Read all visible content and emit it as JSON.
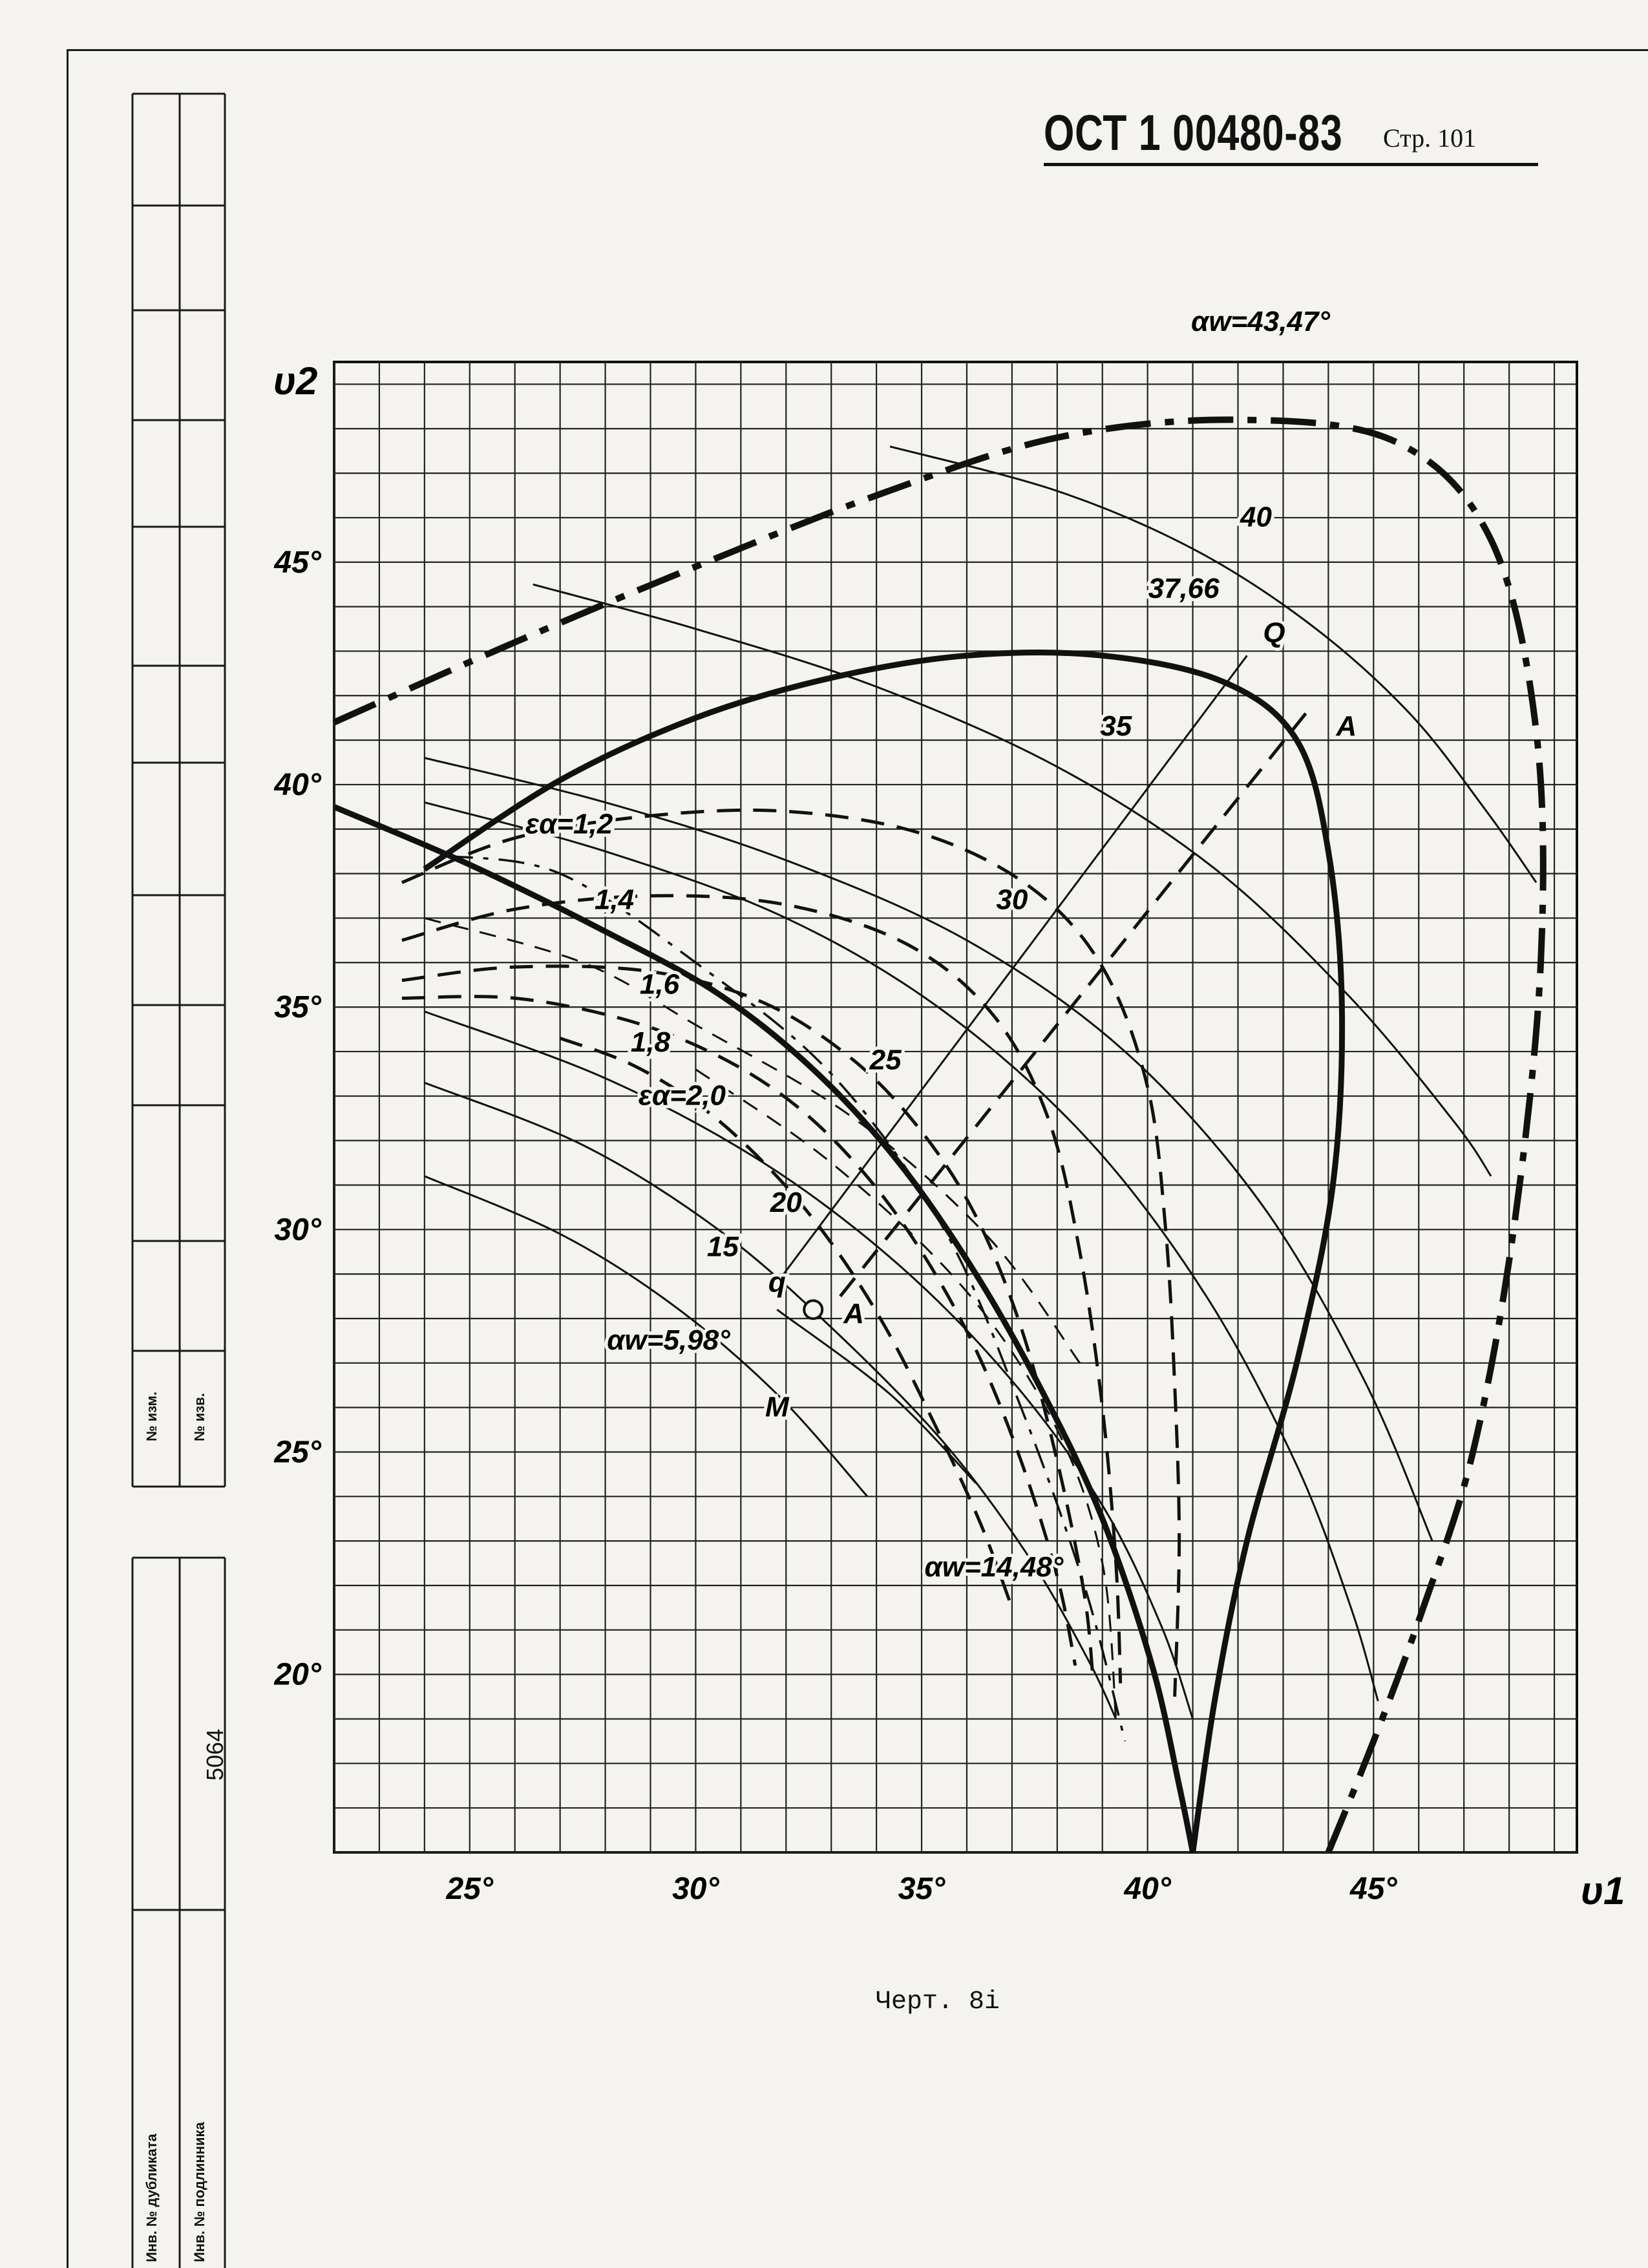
{
  "document": {
    "code": "ОСТ 1 00480-83",
    "page_label": "Стр. 101",
    "caption": "Черт. 8і"
  },
  "stamp": {
    "change_no_1": "№ изм.",
    "change_no_2": "№ изв.",
    "duplicate": "Инв. № дубликата",
    "original": "Инв. № подлинника",
    "number": "5064"
  },
  "chart_data": {
    "type": "line",
    "xlabel": "υ1",
    "ylabel": "υ2",
    "xlim": [
      22,
      49.5
    ],
    "ylim": [
      16,
      49.5
    ],
    "x_ticks": [
      "25°",
      "30°",
      "35°",
      "40°",
      "45°"
    ],
    "x_tick_values": [
      25,
      30,
      35,
      40,
      45
    ],
    "y_ticks": [
      "20°",
      "25°",
      "30°",
      "35°",
      "40°",
      "45°"
    ],
    "y_tick_values": [
      20,
      25,
      30,
      35,
      40,
      45
    ],
    "grid": true,
    "series": [
      {
        "name": "40",
        "style": "thin",
        "points": [
          [
            34.3,
            47.6
          ],
          [
            38,
            46.6
          ],
          [
            41,
            45.3
          ],
          [
            43.6,
            43.6
          ],
          [
            45.8,
            41.6
          ],
          [
            47.5,
            39.4
          ],
          [
            48.6,
            37.8
          ]
        ]
      },
      {
        "name": "37,66",
        "style": "thin",
        "points": [
          [
            26.4,
            44.5
          ],
          [
            30,
            43.5
          ],
          [
            34,
            42.2
          ],
          [
            38,
            40.4
          ],
          [
            41.5,
            38.1
          ],
          [
            44.5,
            35.2
          ],
          [
            46.8,
            32.4
          ],
          [
            47.6,
            31.2
          ]
        ]
      },
      {
        "name": "35",
        "style": "thin",
        "points": [
          [
            24,
            40.6
          ],
          [
            28,
            39.6
          ],
          [
            32,
            38.3
          ],
          [
            36,
            36.5
          ],
          [
            39.5,
            34
          ],
          [
            42.5,
            30.6
          ],
          [
            44.8,
            26.6
          ],
          [
            46.3,
            23
          ]
        ]
      },
      {
        "name": "30",
        "style": "thin",
        "points": [
          [
            24,
            39.6
          ],
          [
            28,
            38.5
          ],
          [
            32,
            37
          ],
          [
            35.5,
            34.9
          ],
          [
            38.7,
            32
          ],
          [
            41.3,
            28.5
          ],
          [
            43.3,
            24.7
          ],
          [
            44.5,
            21.5
          ],
          [
            45.1,
            19.4
          ]
        ]
      },
      {
        "name": "25",
        "style": "thin",
        "points": [
          [
            24,
            34.9
          ],
          [
            28,
            33.4
          ],
          [
            31.5,
            31.5
          ],
          [
            34.5,
            29.2
          ],
          [
            37,
            26.6
          ],
          [
            39,
            23.8
          ],
          [
            40.3,
            21.1
          ],
          [
            41,
            19
          ]
        ]
      },
      {
        "name": "20",
        "style": "thin",
        "points": [
          [
            24,
            33.3
          ],
          [
            27.5,
            31.9
          ],
          [
            30.5,
            30
          ],
          [
            33,
            27.8
          ],
          [
            35.5,
            25.2
          ],
          [
            37.4,
            22.6
          ],
          [
            38.7,
            20.3
          ],
          [
            39.3,
            19
          ]
        ]
      },
      {
        "name": "15",
        "style": "thin",
        "points": [
          [
            24,
            31.2
          ],
          [
            27,
            29.9
          ],
          [
            29.5,
            28.3
          ],
          [
            31.8,
            26.3
          ],
          [
            33.8,
            24
          ]
        ]
      },
      {
        "name": "αw=43,47°",
        "style": "thick-dashdot",
        "points": [
          [
            22,
            41.4
          ],
          [
            26,
            43.2
          ],
          [
            30,
            44.9
          ],
          [
            34,
            46.5
          ],
          [
            38,
            47.8
          ],
          [
            42,
            48.2
          ],
          [
            45.5,
            47.7
          ],
          [
            47.6,
            45.5
          ],
          [
            48.6,
            41.2
          ],
          [
            48.7,
            36
          ],
          [
            48.1,
            30
          ],
          [
            47.2,
            25
          ],
          [
            46.1,
            21.5
          ],
          [
            45,
            18.5
          ],
          [
            44,
            16
          ]
        ]
      },
      {
        "name": "αw=14,48°",
        "style": "thick",
        "points": [
          [
            24,
            38.1
          ],
          [
            27,
            40.1
          ],
          [
            30,
            41.5
          ],
          [
            33,
            42.4
          ],
          [
            36,
            42.9
          ],
          [
            39,
            42.9
          ],
          [
            41.7,
            42.3
          ],
          [
            43.3,
            41
          ],
          [
            44,
            38.5
          ],
          [
            44.3,
            35
          ],
          [
            44.1,
            31
          ],
          [
            43.3,
            27
          ],
          [
            42.2,
            23
          ],
          [
            41.5,
            19.5
          ],
          [
            41,
            16
          ]
        ]
      },
      {
        "name": "αw=5,98°",
        "style": "thick",
        "points": [
          [
            22,
            39.5
          ],
          [
            25,
            38.2
          ],
          [
            28,
            36.7
          ],
          [
            30.5,
            35.3
          ],
          [
            32.6,
            33.6
          ],
          [
            34.5,
            31.5
          ],
          [
            36.2,
            29
          ],
          [
            37.7,
            26.3
          ],
          [
            39,
            23.5
          ],
          [
            40.1,
            20.2
          ],
          [
            40.7,
            17.5
          ],
          [
            41,
            16
          ]
        ]
      },
      {
        "name": "ε=1,2",
        "style": "dashed",
        "points": [
          [
            23.5,
            37.8
          ],
          [
            26,
            38.8
          ],
          [
            29,
            39.3
          ],
          [
            32,
            39.4
          ],
          [
            35,
            38.9
          ],
          [
            37.4,
            37.7
          ],
          [
            39,
            35.9
          ],
          [
            40,
            33.2
          ],
          [
            40.4,
            30
          ],
          [
            40.6,
            26.5
          ],
          [
            40.7,
            23
          ],
          [
            40.6,
            19.5
          ]
        ]
      },
      {
        "name": "ε=1,4",
        "style": "dashed",
        "points": [
          [
            23.5,
            36.5
          ],
          [
            26,
            37.2
          ],
          [
            29,
            37.5
          ],
          [
            32,
            37.3
          ],
          [
            34.7,
            36.4
          ],
          [
            36.6,
            34.8
          ],
          [
            37.8,
            32.5
          ],
          [
            38.5,
            29.5
          ],
          [
            39,
            26
          ],
          [
            39.3,
            22.5
          ],
          [
            39.4,
            19.8
          ]
        ]
      },
      {
        "name": "ε=1,6",
        "style": "dashed",
        "points": [
          [
            23.5,
            35.6
          ],
          [
            26,
            35.9
          ],
          [
            29,
            35.8
          ],
          [
            31.5,
            35.1
          ],
          [
            33.5,
            33.8
          ],
          [
            35,
            32.2
          ],
          [
            36.2,
            30.3
          ],
          [
            37.2,
            27.8
          ],
          [
            38,
            24.8
          ],
          [
            38.6,
            21.8
          ],
          [
            38.8,
            19.8
          ]
        ]
      },
      {
        "name": "ε=1,8",
        "style": "dashed",
        "points": [
          [
            23.5,
            35.2
          ],
          [
            26,
            35.2
          ],
          [
            28.5,
            34.7
          ],
          [
            30.5,
            33.9
          ],
          [
            32.2,
            32.8
          ],
          [
            33.7,
            31.3
          ],
          [
            35,
            29.5
          ],
          [
            36.2,
            27.3
          ],
          [
            37.2,
            24.8
          ],
          [
            38,
            22.2
          ],
          [
            38.4,
            20.2
          ]
        ]
      },
      {
        "name": "ε=2,0",
        "style": "dashed",
        "points": [
          [
            27,
            34.3
          ],
          [
            28.6,
            33.7
          ],
          [
            30.2,
            32.7
          ],
          [
            31.7,
            31.3
          ],
          [
            33,
            29.7
          ],
          [
            34.2,
            27.8
          ],
          [
            35.3,
            25.6
          ],
          [
            36.3,
            23.4
          ],
          [
            37,
            21.5
          ]
        ]
      },
      {
        "name": "Q–q",
        "style": "thin",
        "points": [
          [
            31.8,
            28.8
          ],
          [
            42.2,
            42.9
          ]
        ]
      },
      {
        "name": "A–A",
        "style": "dashed",
        "points": [
          [
            33.2,
            28.5
          ],
          [
            43.5,
            41.6
          ]
        ]
      },
      {
        "name": "M",
        "style": "thin",
        "points": [
          [
            31.8,
            28.2
          ],
          [
            34.3,
            26.3
          ],
          [
            36.2,
            24.3
          ]
        ]
      },
      {
        "name": "aux-dash-1",
        "style": "thin-dashed",
        "points": [
          [
            24,
            37
          ],
          [
            27.5,
            36
          ],
          [
            30,
            34.6
          ],
          [
            33.5,
            32.5
          ],
          [
            36.5,
            29.8
          ],
          [
            38.5,
            27
          ]
        ]
      },
      {
        "name": "aux-dash-2",
        "style": "thin-dashed",
        "points": [
          [
            30,
            33.6
          ],
          [
            33,
            31.5
          ],
          [
            36,
            28.6
          ],
          [
            38,
            25.5
          ],
          [
            39,
            22.5
          ],
          [
            39.3,
            19
          ]
        ]
      },
      {
        "name": "aux-dashdot",
        "style": "thin-dashdot",
        "points": [
          [
            24.5,
            38.4
          ],
          [
            27,
            38
          ],
          [
            30,
            36
          ],
          [
            33,
            33.5
          ],
          [
            35.5,
            30
          ],
          [
            37.2,
            26
          ],
          [
            38.6,
            22
          ],
          [
            39.5,
            18.5
          ]
        ]
      }
    ],
    "points": [
      {
        "name": "M",
        "x": 32.6,
        "y": 28.2
      }
    ],
    "annotations": [
      {
        "text": "αw=43,47°",
        "x": 42.5,
        "y": 50.2
      },
      {
        "text": "40",
        "x": 42.4,
        "y": 45.8
      },
      {
        "text": "37,66",
        "x": 40.8,
        "y": 44.2
      },
      {
        "text": "Q",
        "x": 42.8,
        "y": 43.2
      },
      {
        "text": "35",
        "x": 39.3,
        "y": 41.1
      },
      {
        "text": "A",
        "x": 44.4,
        "y": 41.1
      },
      {
        "text": "εα=1,2",
        "x": 27.2,
        "y": 38.9
      },
      {
        "text": "1,4",
        "x": 28.2,
        "y": 37.2
      },
      {
        "text": "30",
        "x": 37,
        "y": 37.2
      },
      {
        "text": "1,6",
        "x": 29.2,
        "y": 35.3
      },
      {
        "text": "1,8",
        "x": 29,
        "y": 34.0
      },
      {
        "text": "25",
        "x": 34.2,
        "y": 33.6
      },
      {
        "text": "εα=2,0",
        "x": 29.7,
        "y": 32.8
      },
      {
        "text": "20",
        "x": 32,
        "y": 30.4
      },
      {
        "text": "15",
        "x": 30.6,
        "y": 29.4
      },
      {
        "text": "q",
        "x": 31.8,
        "y": 28.6
      },
      {
        "text": "αw=5,98°",
        "x": 29.4,
        "y": 27.3
      },
      {
        "text": "A",
        "x": 33.5,
        "y": 27.9
      },
      {
        "text": "M",
        "x": 31.8,
        "y": 25.8
      },
      {
        "text": "αw=14,48°",
        "x": 36.6,
        "y": 22.2
      }
    ]
  }
}
